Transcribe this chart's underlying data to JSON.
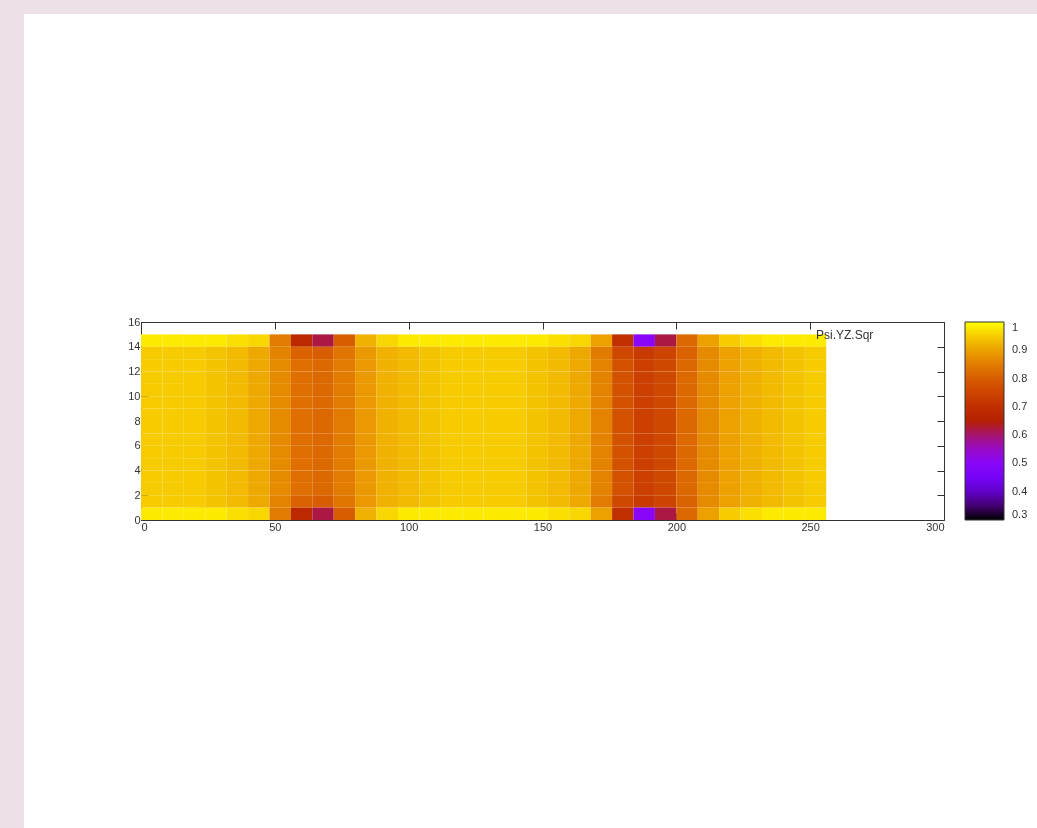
{
  "chart_data": {
    "type": "heatmap",
    "x": [
      4,
      12,
      20,
      28,
      36,
      44,
      52,
      60,
      68,
      76,
      84,
      92,
      100,
      108,
      116,
      124,
      132,
      140,
      148,
      156,
      164,
      172,
      180,
      188,
      196,
      204,
      212,
      220,
      228,
      236,
      244,
      252
    ],
    "y": [
      14.5,
      13.5,
      12.5,
      11.5,
      10.5,
      9.5,
      8.5,
      7.5,
      6.5,
      5.5,
      4.5,
      3.5,
      2.5,
      1.5,
      0.5
    ],
    "cells": [
      [
        0.98,
        0.98,
        0.98,
        0.98,
        0.97,
        0.96,
        0.85,
        0.68,
        0.62,
        0.8,
        0.92,
        0.96,
        0.98,
        0.98,
        0.98,
        0.98,
        0.98,
        0.98,
        0.98,
        0.97,
        0.96,
        0.9,
        0.7,
        0.5,
        0.62,
        0.82,
        0.9,
        0.95,
        0.97,
        0.98,
        0.98,
        0.98
      ],
      [
        0.95,
        0.95,
        0.95,
        0.94,
        0.93,
        0.91,
        0.86,
        0.81,
        0.8,
        0.84,
        0.89,
        0.92,
        0.93,
        0.94,
        0.95,
        0.95,
        0.95,
        0.95,
        0.94,
        0.93,
        0.91,
        0.85,
        0.76,
        0.73,
        0.75,
        0.81,
        0.87,
        0.9,
        0.92,
        0.93,
        0.94,
        0.95
      ],
      [
        0.95,
        0.95,
        0.95,
        0.94,
        0.93,
        0.91,
        0.87,
        0.83,
        0.82,
        0.85,
        0.89,
        0.92,
        0.93,
        0.94,
        0.95,
        0.95,
        0.95,
        0.95,
        0.94,
        0.93,
        0.91,
        0.86,
        0.78,
        0.74,
        0.76,
        0.82,
        0.87,
        0.9,
        0.92,
        0.93,
        0.94,
        0.95
      ],
      [
        0.95,
        0.95,
        0.95,
        0.94,
        0.93,
        0.91,
        0.87,
        0.83,
        0.82,
        0.85,
        0.89,
        0.92,
        0.93,
        0.94,
        0.95,
        0.95,
        0.95,
        0.95,
        0.94,
        0.93,
        0.91,
        0.86,
        0.78,
        0.74,
        0.76,
        0.82,
        0.87,
        0.9,
        0.92,
        0.93,
        0.94,
        0.95
      ],
      [
        0.95,
        0.95,
        0.95,
        0.94,
        0.93,
        0.91,
        0.87,
        0.83,
        0.82,
        0.85,
        0.89,
        0.92,
        0.93,
        0.94,
        0.95,
        0.95,
        0.95,
        0.95,
        0.94,
        0.93,
        0.91,
        0.86,
        0.78,
        0.74,
        0.76,
        0.82,
        0.87,
        0.9,
        0.92,
        0.93,
        0.94,
        0.95
      ],
      [
        0.95,
        0.95,
        0.95,
        0.94,
        0.93,
        0.91,
        0.87,
        0.83,
        0.82,
        0.85,
        0.89,
        0.92,
        0.93,
        0.94,
        0.95,
        0.95,
        0.95,
        0.95,
        0.94,
        0.93,
        0.91,
        0.86,
        0.78,
        0.74,
        0.76,
        0.82,
        0.87,
        0.9,
        0.92,
        0.93,
        0.94,
        0.95
      ],
      [
        0.95,
        0.95,
        0.95,
        0.94,
        0.93,
        0.91,
        0.87,
        0.83,
        0.82,
        0.85,
        0.89,
        0.92,
        0.93,
        0.94,
        0.95,
        0.95,
        0.95,
        0.95,
        0.94,
        0.93,
        0.91,
        0.86,
        0.78,
        0.74,
        0.76,
        0.82,
        0.87,
        0.9,
        0.92,
        0.93,
        0.94,
        0.95
      ],
      [
        0.95,
        0.95,
        0.95,
        0.94,
        0.93,
        0.91,
        0.87,
        0.83,
        0.82,
        0.85,
        0.89,
        0.92,
        0.93,
        0.94,
        0.95,
        0.95,
        0.95,
        0.95,
        0.94,
        0.93,
        0.91,
        0.86,
        0.78,
        0.74,
        0.76,
        0.82,
        0.87,
        0.9,
        0.92,
        0.93,
        0.94,
        0.95
      ],
      [
        0.95,
        0.95,
        0.95,
        0.94,
        0.93,
        0.91,
        0.87,
        0.83,
        0.82,
        0.85,
        0.89,
        0.92,
        0.93,
        0.94,
        0.95,
        0.95,
        0.95,
        0.95,
        0.94,
        0.93,
        0.91,
        0.86,
        0.78,
        0.74,
        0.76,
        0.82,
        0.87,
        0.9,
        0.92,
        0.93,
        0.94,
        0.95
      ],
      [
        0.95,
        0.95,
        0.95,
        0.94,
        0.93,
        0.91,
        0.87,
        0.83,
        0.82,
        0.85,
        0.89,
        0.92,
        0.93,
        0.94,
        0.95,
        0.95,
        0.95,
        0.95,
        0.94,
        0.93,
        0.91,
        0.86,
        0.78,
        0.74,
        0.76,
        0.82,
        0.87,
        0.9,
        0.92,
        0.93,
        0.94,
        0.95
      ],
      [
        0.95,
        0.95,
        0.95,
        0.94,
        0.93,
        0.91,
        0.87,
        0.83,
        0.82,
        0.85,
        0.89,
        0.92,
        0.93,
        0.94,
        0.95,
        0.95,
        0.95,
        0.95,
        0.94,
        0.93,
        0.91,
        0.86,
        0.78,
        0.74,
        0.76,
        0.82,
        0.87,
        0.9,
        0.92,
        0.93,
        0.94,
        0.95
      ],
      [
        0.95,
        0.95,
        0.95,
        0.94,
        0.93,
        0.91,
        0.87,
        0.83,
        0.82,
        0.85,
        0.89,
        0.92,
        0.93,
        0.94,
        0.95,
        0.95,
        0.95,
        0.95,
        0.94,
        0.93,
        0.91,
        0.86,
        0.78,
        0.74,
        0.76,
        0.82,
        0.87,
        0.9,
        0.92,
        0.93,
        0.94,
        0.95
      ],
      [
        0.95,
        0.95,
        0.95,
        0.94,
        0.93,
        0.91,
        0.87,
        0.83,
        0.82,
        0.85,
        0.89,
        0.92,
        0.93,
        0.94,
        0.95,
        0.95,
        0.95,
        0.95,
        0.94,
        0.93,
        0.91,
        0.86,
        0.78,
        0.74,
        0.76,
        0.82,
        0.87,
        0.9,
        0.92,
        0.93,
        0.94,
        0.95
      ],
      [
        0.95,
        0.95,
        0.95,
        0.94,
        0.93,
        0.91,
        0.86,
        0.81,
        0.8,
        0.84,
        0.89,
        0.92,
        0.93,
        0.94,
        0.95,
        0.95,
        0.95,
        0.95,
        0.94,
        0.93,
        0.91,
        0.85,
        0.76,
        0.73,
        0.75,
        0.81,
        0.87,
        0.9,
        0.92,
        0.93,
        0.94,
        0.95
      ],
      [
        0.98,
        0.98,
        0.98,
        0.98,
        0.97,
        0.96,
        0.85,
        0.68,
        0.62,
        0.8,
        0.92,
        0.96,
        0.98,
        0.98,
        0.98,
        0.98,
        0.98,
        0.98,
        0.98,
        0.97,
        0.96,
        0.9,
        0.7,
        0.5,
        0.62,
        0.82,
        0.9,
        0.95,
        0.97,
        0.98,
        0.98,
        0.98
      ]
    ],
    "xlim": [
      0,
      300
    ],
    "xticks": [
      0,
      50,
      100,
      150,
      200,
      250,
      300
    ],
    "ylim": [
      0,
      16
    ],
    "yticks": [
      0,
      2,
      4,
      6,
      8,
      10,
      12,
      14,
      16
    ],
    "clim": [
      0.3,
      1
    ],
    "cticks": [
      0.3,
      0.4,
      0.5,
      0.6,
      0.7,
      0.8,
      0.9,
      1
    ],
    "annotations": [
      "Psi.YZ.Sqr"
    ]
  }
}
